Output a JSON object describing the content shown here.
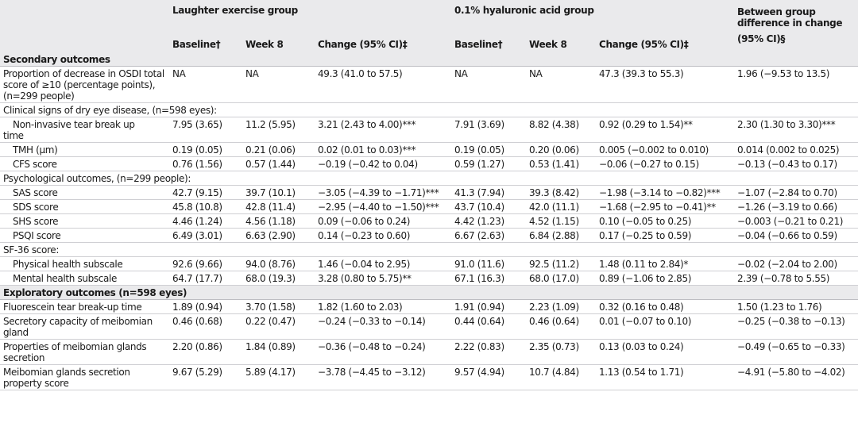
{
  "header": {
    "groups": {
      "laughter": "Laughter exercise group",
      "hyaluronic": "0.1% hyaluronic acid group",
      "between_line1": "Between group difference in change",
      "between_line2": "(95% CI)§"
    },
    "cols": {
      "baseline": "Baseline†",
      "week8": "Week 8",
      "change": "Change (95% CI)‡"
    }
  },
  "rows": {
    "secondary": "Secondary outcomes",
    "osdi": {
      "label": "Proportion of decrease in OSDI total score of ≥10 (percentage points), (n=299 people)",
      "v": [
        "NA",
        "NA",
        "49.3 (41.0 to 57.5)",
        "NA",
        "NA",
        "47.3 (39.3 to 55.3)",
        "1.96 (−9.53 to 13.5)"
      ]
    },
    "clinical": "Clinical signs of dry eye disease, (n=598 eyes):",
    "nibut": {
      "label": "Non-invasive tear break up",
      "label2": "time",
      "v": [
        "7.95 (3.65)",
        "11.2 (5.95)",
        "3.21 (2.43 to 4.00)***",
        "7.91 (3.69)",
        "8.82 (4.38)",
        "0.92 (0.29 to 1.54)**",
        "2.30 (1.30 to 3.30)***"
      ]
    },
    "tmh": {
      "label": "TMH (μm)",
      "v": [
        "0.19 (0.05)",
        "0.21 (0.06)",
        "0.02 (0.01 to 0.03)***",
        "0.19 (0.05)",
        "0.20 (0.06)",
        "0.005 (−0.002 to 0.010)",
        "0.014 (0.002 to 0.025)"
      ]
    },
    "cfs": {
      "label": "CFS score",
      "v": [
        "0.76 (1.56)",
        "0.57 (1.44)",
        "−0.19 (−0.42 to 0.04)",
        "0.59 (1.27)",
        "0.53 (1.41)",
        "−0.06 (−0.27 to 0.15)",
        "−0.13 (−0.43 to 0.17)"
      ]
    },
    "psych": "Psychological outcomes, (n=299 people):",
    "sas": {
      "label": "SAS score",
      "v": [
        "42.7 (9.15)",
        "39.7 (10.1)",
        "−3.05 (−4.39 to −1.71)***",
        "41.3 (7.94)",
        "39.3 (8.42)",
        "−1.98 (−3.14 to −0.82)***",
        "−1.07 (−2.84 to 0.70)"
      ]
    },
    "sds": {
      "label": "SDS score",
      "v": [
        "45.8 (10.8)",
        "42.8 (11.4)",
        "−2.95 (−4.40 to −1.50)***",
        "43.7 (10.4)",
        "42.0 (11.1)",
        "−1.68 (−2.95 to −0.41)**",
        "−1.26 (−3.19 to 0.66)"
      ]
    },
    "shs": {
      "label": "SHS score",
      "v": [
        "4.46 (1.24)",
        "4.56 (1.18)",
        "0.09 (−0.06 to 0.24)",
        "4.42 (1.23)",
        "4.52 (1.15)",
        "0.10 (−0.05 to 0.25)",
        "−0.003 (−0.21 to 0.21)"
      ]
    },
    "psqi": {
      "label": "PSQI score",
      "v": [
        "6.49 (3.01)",
        "6.63 (2.90)",
        "0.14 (−0.23 to 0.60)",
        "6.67 (2.63)",
        "6.84 (2.88)",
        "0.17 (−0.25 to 0.59)",
        "−0.04 (−0.66 to 0.59)"
      ]
    },
    "sf36": "SF-36 score:",
    "physical": {
      "label": "Physical health subscale",
      "v": [
        "92.6 (9.66)",
        "94.0 (8.76)",
        "1.46 (−0.04 to 2.95)",
        "91.0 (11.6)",
        "92.5 (11.2)",
        "1.48 (0.11 to 2.84)*",
        "−0.02 (−2.04 to 2.00)"
      ]
    },
    "mental": {
      "label": "Mental health subscale",
      "v": [
        "64.7 (17.7)",
        "68.0 (19.3)",
        "3.28 (0.80 to 5.75)**",
        "67.1 (16.3)",
        "68.0 (17.0)",
        "0.89 (−1.06 to 2.85)",
        "2.39 (−0.78 to 5.55)"
      ]
    },
    "exploratory": "Exploratory outcomes (n=598 eyes)",
    "fbut": {
      "label": "Fluorescein tear break-up time",
      "v": [
        "1.89 (0.94)",
        "3.70 (1.58)",
        "1.82 (1.60 to 2.03)",
        "1.91 (0.94)",
        "2.23 (1.09)",
        "0.32 (0.16 to 0.48)",
        "1.50 (1.23 to 1.76)"
      ]
    },
    "secretory": {
      "label": "Secretory capacity of meibomian gland",
      "v": [
        "0.46 (0.68)",
        "0.22 (0.47)",
        "−0.24 (−0.33 to −0.14)",
        "0.44 (0.64)",
        "0.46 (0.64)",
        "0.01 (−0.07 to 0.10)",
        "−0.25 (−0.38 to −0.13)"
      ]
    },
    "properties": {
      "label": "Properties of meibomian glands secretion",
      "v": [
        "2.20 (0.86)",
        "1.84 (0.89)",
        "−0.36 (−0.48 to −0.24)",
        "2.22 (0.83)",
        "2.35 (0.73)",
        "0.13 (0.03 to 0.24)",
        "−0.49 (−0.65 to −0.33)"
      ]
    },
    "property_score": {
      "label": "Meibomian glands secretion property score",
      "v": [
        "9.67 (5.29)",
        "5.89 (4.17)",
        "−3.78 (−4.45 to −3.12)",
        "9.57 (4.94)",
        "10.7 (4.84)",
        "1.13 (0.54 to 1.71)",
        "−4.91 (−5.80 to −4.02)"
      ]
    }
  }
}
